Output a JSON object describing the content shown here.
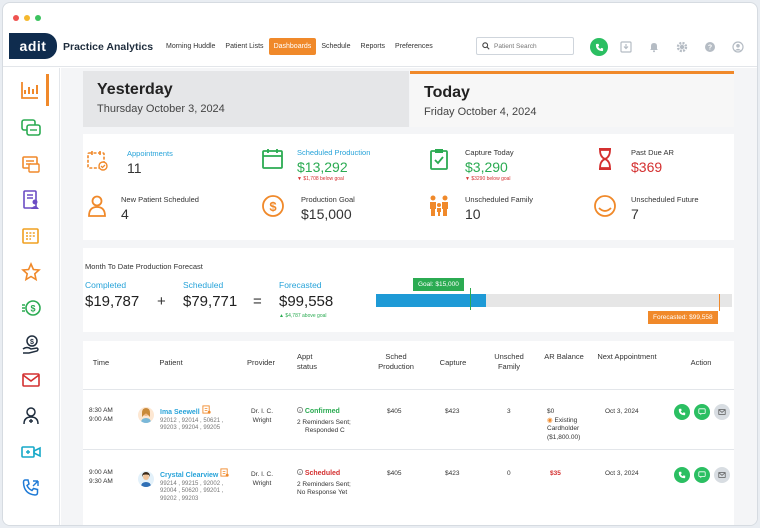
{
  "app": {
    "logo": "adit",
    "name": "Practice Analytics"
  },
  "nav": [
    "Morning Huddle",
    "Patient Lists",
    "Dashboards",
    "Schedule",
    "Reports",
    "Preferences"
  ],
  "search": {
    "placeholder": "Patient Search"
  },
  "days": {
    "yesterday": {
      "title": "Yesterday",
      "date": "Thursday October 3, 2024"
    },
    "today": {
      "title": "Today",
      "date": "Friday October 4, 2024"
    }
  },
  "stats": [
    {
      "label": "Appointments",
      "value": "11",
      "sub": ""
    },
    {
      "label": "Scheduled Production",
      "value": "$13,292",
      "sub": "$1,708 below goal"
    },
    {
      "label": "Capture Today",
      "value": "$3,290",
      "sub": "$3290 below goal"
    },
    {
      "label": "Past Due AR",
      "value": "$369",
      "sub": ""
    },
    {
      "label": "New Patient Scheduled",
      "value": "4",
      "sub": ""
    },
    {
      "label": "Production Goal",
      "value": "$15,000",
      "sub": ""
    },
    {
      "label": "Unscheduled Family",
      "value": "10",
      "sub": ""
    },
    {
      "label": "Unscheduled Future",
      "value": "7",
      "sub": ""
    }
  ],
  "forecast": {
    "title": "Month To Date Production Forecast",
    "completed_label": "Completed",
    "completed": "$19,787",
    "plus": "+",
    "scheduled_label": "Scheduled",
    "scheduled": "$79,771",
    "equals": "=",
    "forecasted_label": "Forecasted",
    "forecasted": "$99,558",
    "above": "$4,787 above goal",
    "goal_tag": "Goal: $15,000",
    "forecast_tag": "Forecasted: $99,558",
    "progress_fraction": 0.31
  },
  "table": {
    "headers": [
      "Time",
      "Patient",
      "Provider",
      "Appt status",
      "Sched Production",
      "Capture",
      "Unsched Family",
      "AR Balance",
      "Next Appointment",
      "Action"
    ],
    "rows": [
      {
        "time1": "8:30 AM",
        "time2": "9:00 AM",
        "patient": "Ima Seewell",
        "codes1": "92012 , 92014 , 50621 ,",
        "codes2": "99203 , 99204 , 99205",
        "provider1": "Dr. I. C.",
        "provider2": "Wright",
        "status": "Confirmed",
        "status_note1": "2 Reminders Sent;",
        "status_note2": "Responded C",
        "sched": "$405",
        "capture": "$423",
        "unsched": "3",
        "ar": "$0",
        "ar_note1": "Existing",
        "ar_note2": "Cardholder",
        "ar_note3": "($1,800.00)",
        "next": "Oct 3, 2024"
      },
      {
        "time1": "9:00 AM",
        "time2": "9:30 AM",
        "patient": "Crystal Clearview",
        "codes1": "99214 , 99215 , 92002 ,",
        "codes2": "92004 , 50620 , 99201 ,",
        "codes3": "99202 , 99203",
        "provider1": "Dr. I. C.",
        "provider2": "Wright",
        "status": "Scheduled",
        "status_note1": "2 Reminders Sent;",
        "status_note2": "No Response Yet",
        "sched": "$405",
        "capture": "$423",
        "unsched": "0",
        "ar": "$35",
        "next": "Oct 3, 2024"
      }
    ]
  },
  "colors": {
    "accent": "#f0892a",
    "blue": "#27a3d9",
    "green": "#2bab52",
    "red": "#d43030",
    "navy": "#0f2c4e"
  }
}
